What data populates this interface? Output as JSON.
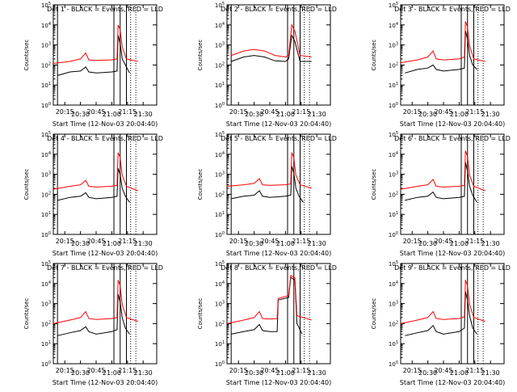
{
  "colors": {
    "black": "#000000",
    "red": "#ff0000",
    "background": "#ffffff"
  },
  "chart_data": [
    {
      "type": "line",
      "title": "Det 1 - BLACK = Events, RED = LLD",
      "xlabel": "Start Time (12-Nov-03 20:04:40)",
      "ylabel": "Counts/sec",
      "y_scale": "log",
      "ylim": [
        1,
        100000
      ],
      "xlim": [
        "20:04",
        "21:43"
      ],
      "x_ticks": [
        "20:15",
        "20:30",
        "20:45",
        "21:00",
        "21:15",
        "21:30"
      ],
      "y_ticks": [
        "10^0",
        "10^1",
        "10^2",
        "10^3",
        "10^4",
        "10^5"
      ],
      "vertical_markers": {
        "solid": [
          "20:08",
          "21:02",
          "21:08",
          "21:14"
        ],
        "dotted": [
          "21:18",
          "21:23"
        ]
      },
      "series": [
        {
          "name": "BLACK = Events",
          "color": "#000000",
          "x": [
            "20:08",
            "20:20",
            "20:30",
            "20:35",
            "20:38",
            "20:45",
            "21:00",
            "21:05",
            "21:06",
            "21:08",
            "21:10",
            "21:13",
            "21:17"
          ],
          "values": [
            30,
            45,
            50,
            80,
            45,
            40,
            45,
            50,
            3000,
            1200,
            200,
            100,
            40
          ]
        },
        {
          "name": "RED = LLD",
          "color": "#ff0000",
          "x": [
            "20:04",
            "20:20",
            "20:30",
            "20:35",
            "20:38",
            "20:45",
            "21:00",
            "21:05",
            "21:06",
            "21:08",
            "21:10",
            "21:14",
            "21:25"
          ],
          "values": [
            120,
            150,
            200,
            400,
            180,
            170,
            180,
            200,
            10000,
            6000,
            800,
            200,
            150
          ]
        }
      ]
    },
    {
      "type": "line",
      "title": "Det 2 - BLACK = Events, RED = LLD",
      "xlabel": "Start Time (12-Nov-03 20:04:40)",
      "ylabel": "Counts/sec",
      "y_scale": "log",
      "ylim": [
        1,
        100000
      ],
      "xlim": [
        "20:04",
        "21:43"
      ],
      "x_ticks": [
        "20:15",
        "20:30",
        "20:45",
        "21:00",
        "21:15",
        "21:30"
      ],
      "y_ticks": [
        "10^0",
        "10^1",
        "10^2",
        "10^3",
        "10^4",
        "10^5"
      ],
      "vertical_markers": {
        "solid": [
          "20:08",
          "21:02",
          "21:08",
          "21:14"
        ],
        "dotted": [
          "21:18",
          "21:23"
        ]
      },
      "series": [
        {
          "name": "BLACK = Events",
          "color": "#000000",
          "x": [
            "20:08",
            "20:20",
            "20:30",
            "20:40",
            "20:50",
            "21:00",
            "21:03",
            "21:06",
            "21:09",
            "21:14",
            "21:25"
          ],
          "values": [
            150,
            250,
            300,
            250,
            160,
            150,
            200,
            3000,
            1500,
            150,
            150
          ]
        },
        {
          "name": "RED = LLD",
          "color": "#ff0000",
          "x": [
            "20:08",
            "20:20",
            "20:30",
            "20:40",
            "20:50",
            "21:00",
            "21:03",
            "21:06",
            "21:09",
            "21:14",
            "21:25"
          ],
          "values": [
            300,
            500,
            600,
            500,
            300,
            250,
            300,
            10000,
            5000,
            300,
            250
          ]
        }
      ]
    },
    {
      "type": "line",
      "title": "Det 3 - BLACK = Events, RED = LLD",
      "xlabel": "Start Time (12-Nov-03 20:04:40)",
      "ylabel": "Counts/sec",
      "y_scale": "log",
      "ylim": [
        1,
        100000
      ],
      "xlim": [
        "20:04",
        "21:43"
      ],
      "x_ticks": [
        "20:15",
        "20:30",
        "20:45",
        "21:00",
        "21:15",
        "21:30"
      ],
      "y_ticks": [
        "10^0",
        "10^1",
        "10^2",
        "10^3",
        "10^4",
        "10^5"
      ],
      "vertical_markers": {
        "solid": [
          "21:02",
          "21:08",
          "21:14"
        ],
        "dotted": [
          "21:18",
          "21:23"
        ]
      },
      "series": [
        {
          "name": "BLACK = Events",
          "color": "#000000",
          "x": [
            "20:08",
            "20:20",
            "20:30",
            "20:35",
            "20:38",
            "20:45",
            "21:00",
            "21:05",
            "21:06",
            "21:08",
            "21:10",
            "21:13",
            "21:17"
          ],
          "values": [
            40,
            60,
            70,
            100,
            60,
            50,
            60,
            70,
            5000,
            2000,
            300,
            100,
            60
          ]
        },
        {
          "name": "RED = LLD",
          "color": "#ff0000",
          "x": [
            "20:04",
            "20:20",
            "20:30",
            "20:35",
            "20:38",
            "20:45",
            "21:00",
            "21:05",
            "21:06",
            "21:08",
            "21:10",
            "21:14",
            "21:25"
          ],
          "values": [
            130,
            180,
            250,
            500,
            200,
            180,
            200,
            250,
            15000,
            8000,
            900,
            200,
            150
          ]
        }
      ]
    },
    {
      "type": "line",
      "title": "Det 4 - BLACK = Events, RED = LLD",
      "xlabel": "Start Time (12-Nov-03 20:04:40)",
      "ylabel": "Counts/sec",
      "y_scale": "log",
      "ylim": [
        1,
        100000
      ],
      "xlim": [
        "20:04",
        "21:43"
      ],
      "x_ticks": [
        "20:15",
        "20:30",
        "20:45",
        "21:00",
        "21:15",
        "21:30"
      ],
      "y_ticks": [
        "10^0",
        "10^1",
        "10^2",
        "10^3",
        "10^4",
        "10^5"
      ],
      "vertical_markers": {
        "solid": [
          "20:08",
          "21:02",
          "21:08",
          "21:14"
        ],
        "dotted": [
          "21:18",
          "21:23"
        ]
      },
      "series": [
        {
          "name": "BLACK = Events",
          "color": "#000000",
          "x": [
            "20:08",
            "20:20",
            "20:30",
            "20:35",
            "20:38",
            "20:45",
            "21:00",
            "21:05",
            "21:06",
            "21:08",
            "21:10",
            "21:13",
            "21:17"
          ],
          "values": [
            50,
            70,
            80,
            120,
            70,
            60,
            70,
            80,
            2000,
            1000,
            200,
            80,
            40
          ]
        },
        {
          "name": "RED = LLD",
          "color": "#ff0000",
          "x": [
            "20:04",
            "20:20",
            "20:30",
            "20:35",
            "20:38",
            "20:45",
            "21:00",
            "21:05",
            "21:06",
            "21:08",
            "21:10",
            "21:14",
            "21:25"
          ],
          "values": [
            180,
            250,
            300,
            500,
            250,
            230,
            250,
            280,
            12000,
            7000,
            900,
            250,
            150
          ]
        }
      ]
    },
    {
      "type": "line",
      "title": "Det 5 - BLACK = Events, RED = LLD",
      "xlabel": "Start Time (12-Nov-03 20:04:40)",
      "ylabel": "Counts/sec",
      "y_scale": "log",
      "ylim": [
        1,
        100000
      ],
      "xlim": [
        "20:04",
        "21:43"
      ],
      "x_ticks": [
        "20:15",
        "20:30",
        "20:45",
        "21:00",
        "21:15",
        "21:30"
      ],
      "y_ticks": [
        "10^0",
        "10^1",
        "10^2",
        "10^3",
        "10^4",
        "10^5"
      ],
      "vertical_markers": {
        "solid": [
          "20:08",
          "21:02",
          "21:08",
          "21:14"
        ],
        "dotted": [
          "21:18",
          "21:23"
        ]
      },
      "series": [
        {
          "name": "BLACK = Events",
          "color": "#000000",
          "x": [
            "20:08",
            "20:20",
            "20:30",
            "20:35",
            "20:38",
            "20:45",
            "21:00",
            "21:05",
            "21:06",
            "21:08",
            "21:10",
            "21:13",
            "21:17"
          ],
          "values": [
            60,
            80,
            90,
            150,
            80,
            70,
            80,
            90,
            2500,
            1200,
            200,
            80,
            40
          ]
        },
        {
          "name": "RED = LLD",
          "color": "#ff0000",
          "x": [
            "20:04",
            "20:20",
            "20:30",
            "20:35",
            "20:38",
            "20:45",
            "21:00",
            "21:05",
            "21:06",
            "21:08",
            "21:10",
            "21:14",
            "21:25"
          ],
          "values": [
            250,
            300,
            350,
            600,
            300,
            280,
            300,
            330,
            12000,
            7000,
            900,
            300,
            200
          ]
        }
      ]
    },
    {
      "type": "line",
      "title": "Det 6 - BLACK = Events, RED = LLD",
      "xlabel": "Start Time (12-Nov-03 20:04:40)",
      "ylabel": "Counts/sec",
      "y_scale": "log",
      "ylim": [
        1,
        100000
      ],
      "xlim": [
        "20:04",
        "21:43"
      ],
      "x_ticks": [
        "20:15",
        "20:30",
        "20:45",
        "21:00",
        "21:15",
        "21:30"
      ],
      "y_ticks": [
        "10^0",
        "10^1",
        "10^2",
        "10^3",
        "10^4",
        "10^5"
      ],
      "vertical_markers": {
        "solid": [
          "21:02",
          "21:08",
          "21:14"
        ],
        "dotted": [
          "21:18",
          "21:23"
        ]
      },
      "series": [
        {
          "name": "BLACK = Events",
          "color": "#000000",
          "x": [
            "20:08",
            "20:20",
            "20:30",
            "20:35",
            "20:38",
            "20:45",
            "21:00",
            "21:05",
            "21:06",
            "21:08",
            "21:10",
            "21:13",
            "21:17"
          ],
          "values": [
            50,
            70,
            80,
            130,
            70,
            60,
            70,
            80,
            4000,
            1500,
            250,
            90,
            40
          ]
        },
        {
          "name": "RED = LLD",
          "color": "#ff0000",
          "x": [
            "20:04",
            "20:20",
            "20:30",
            "20:35",
            "20:38",
            "20:45",
            "21:00",
            "21:05",
            "21:06",
            "21:08",
            "21:10",
            "21:14",
            "21:25"
          ],
          "values": [
            180,
            250,
            300,
            550,
            250,
            230,
            250,
            280,
            15000,
            8000,
            900,
            250,
            150
          ]
        }
      ]
    },
    {
      "type": "line",
      "title": "Det 7 - BLACK = Events, RED = LLD",
      "xlabel": "Start Time (12-Nov-03 20:04:40)",
      "ylabel": "Counts/sec",
      "y_scale": "log",
      "ylim": [
        1,
        100000
      ],
      "xlim": [
        "20:04",
        "21:43"
      ],
      "x_ticks": [
        "20:15",
        "20:30",
        "20:45",
        "21:00",
        "21:15",
        "21:30"
      ],
      "y_ticks": [
        "10^0",
        "10^1",
        "10^2",
        "10^3",
        "10^4",
        "10^5"
      ],
      "vertical_markers": {
        "solid": [
          "20:08",
          "21:02",
          "21:08",
          "21:14"
        ],
        "dotted": [
          "21:18",
          "21:23"
        ]
      },
      "series": [
        {
          "name": "BLACK = Events",
          "color": "#000000",
          "x": [
            "20:08",
            "20:20",
            "20:30",
            "20:35",
            "20:38",
            "20:45",
            "21:00",
            "21:05",
            "21:06",
            "21:08",
            "21:10",
            "21:13",
            "21:17"
          ],
          "values": [
            25,
            35,
            45,
            70,
            40,
            30,
            40,
            50,
            3000,
            1200,
            200,
            60,
            30
          ]
        },
        {
          "name": "RED = LLD",
          "color": "#ff0000",
          "x": [
            "20:04",
            "20:20",
            "20:30",
            "20:35",
            "20:38",
            "20:45",
            "21:00",
            "21:05",
            "21:06",
            "21:08",
            "21:10",
            "21:14",
            "21:25"
          ],
          "values": [
            100,
            150,
            200,
            400,
            180,
            160,
            180,
            200,
            15000,
            8000,
            900,
            200,
            130
          ]
        }
      ]
    },
    {
      "type": "line",
      "title": "Det 8 - BLACK = Events, RED = LLD",
      "xlabel": "Start Time (12-Nov-03 20:04:40)",
      "ylabel": "Counts/sec",
      "y_scale": "log",
      "ylim": [
        1,
        100000
      ],
      "xlim": [
        "20:04",
        "21:43"
      ],
      "x_ticks": [
        "20:15",
        "20:30",
        "20:45",
        "21:00",
        "21:15",
        "21:30"
      ],
      "y_ticks": [
        "10^0",
        "10^1",
        "10^2",
        "10^3",
        "10^4",
        "10^5"
      ],
      "vertical_markers": {
        "solid": [
          "20:08",
          "21:02",
          "21:08",
          "21:14"
        ],
        "dotted": [
          "21:18",
          "21:23"
        ]
      },
      "series": [
        {
          "name": "BLACK = Events",
          "color": "#000000",
          "x": [
            "20:08",
            "20:20",
            "20:30",
            "20:35",
            "20:38",
            "20:45",
            "20:52",
            "20:53",
            "21:03",
            "21:05",
            "21:09",
            "21:11",
            "21:16"
          ],
          "values": [
            30,
            40,
            50,
            90,
            45,
            40,
            40,
            1500,
            2000,
            20000,
            15000,
            100,
            30
          ]
        },
        {
          "name": "RED = LLD",
          "color": "#ff0000",
          "x": [
            "20:04",
            "20:20",
            "20:30",
            "20:35",
            "20:38",
            "20:45",
            "20:52",
            "20:53",
            "21:03",
            "21:05",
            "21:09",
            "21:11",
            "21:25"
          ],
          "values": [
            100,
            150,
            200,
            400,
            180,
            170,
            180,
            1800,
            2500,
            25000,
            20000,
            250,
            150
          ]
        }
      ]
    },
    {
      "type": "line",
      "title": "Det 9 - BLACK = Events, RED = LLD",
      "xlabel": "Start Time (12-Nov-03 20:04:40)",
      "ylabel": "Counts/sec",
      "y_scale": "log",
      "ylim": [
        1,
        100000
      ],
      "xlim": [
        "20:04",
        "21:43"
      ],
      "x_ticks": [
        "20:15",
        "20:30",
        "20:45",
        "21:00",
        "21:15",
        "21:30"
      ],
      "y_ticks": [
        "10^0",
        "10^1",
        "10^2",
        "10^3",
        "10^4",
        "10^5"
      ],
      "vertical_markers": {
        "solid": [
          "21:02",
          "21:08",
          "21:14"
        ],
        "dotted": [
          "21:18",
          "21:23"
        ]
      },
      "series": [
        {
          "name": "BLACK = Events",
          "color": "#000000",
          "x": [
            "20:08",
            "20:20",
            "20:30",
            "20:35",
            "20:38",
            "20:45",
            "21:00",
            "21:05",
            "21:06",
            "21:08",
            "21:10",
            "21:13",
            "21:17"
          ],
          "values": [
            25,
            35,
            45,
            80,
            40,
            30,
            40,
            60,
            4000,
            1500,
            250,
            60,
            30
          ]
        },
        {
          "name": "RED = LLD",
          "color": "#ff0000",
          "x": [
            "20:04",
            "20:20",
            "20:30",
            "20:35",
            "20:38",
            "20:45",
            "21:00",
            "21:05",
            "21:06",
            "21:08",
            "21:10",
            "21:14",
            "21:25"
          ],
          "values": [
            100,
            150,
            200,
            400,
            180,
            160,
            180,
            220,
            15000,
            8000,
            900,
            200,
            130
          ]
        }
      ]
    }
  ]
}
